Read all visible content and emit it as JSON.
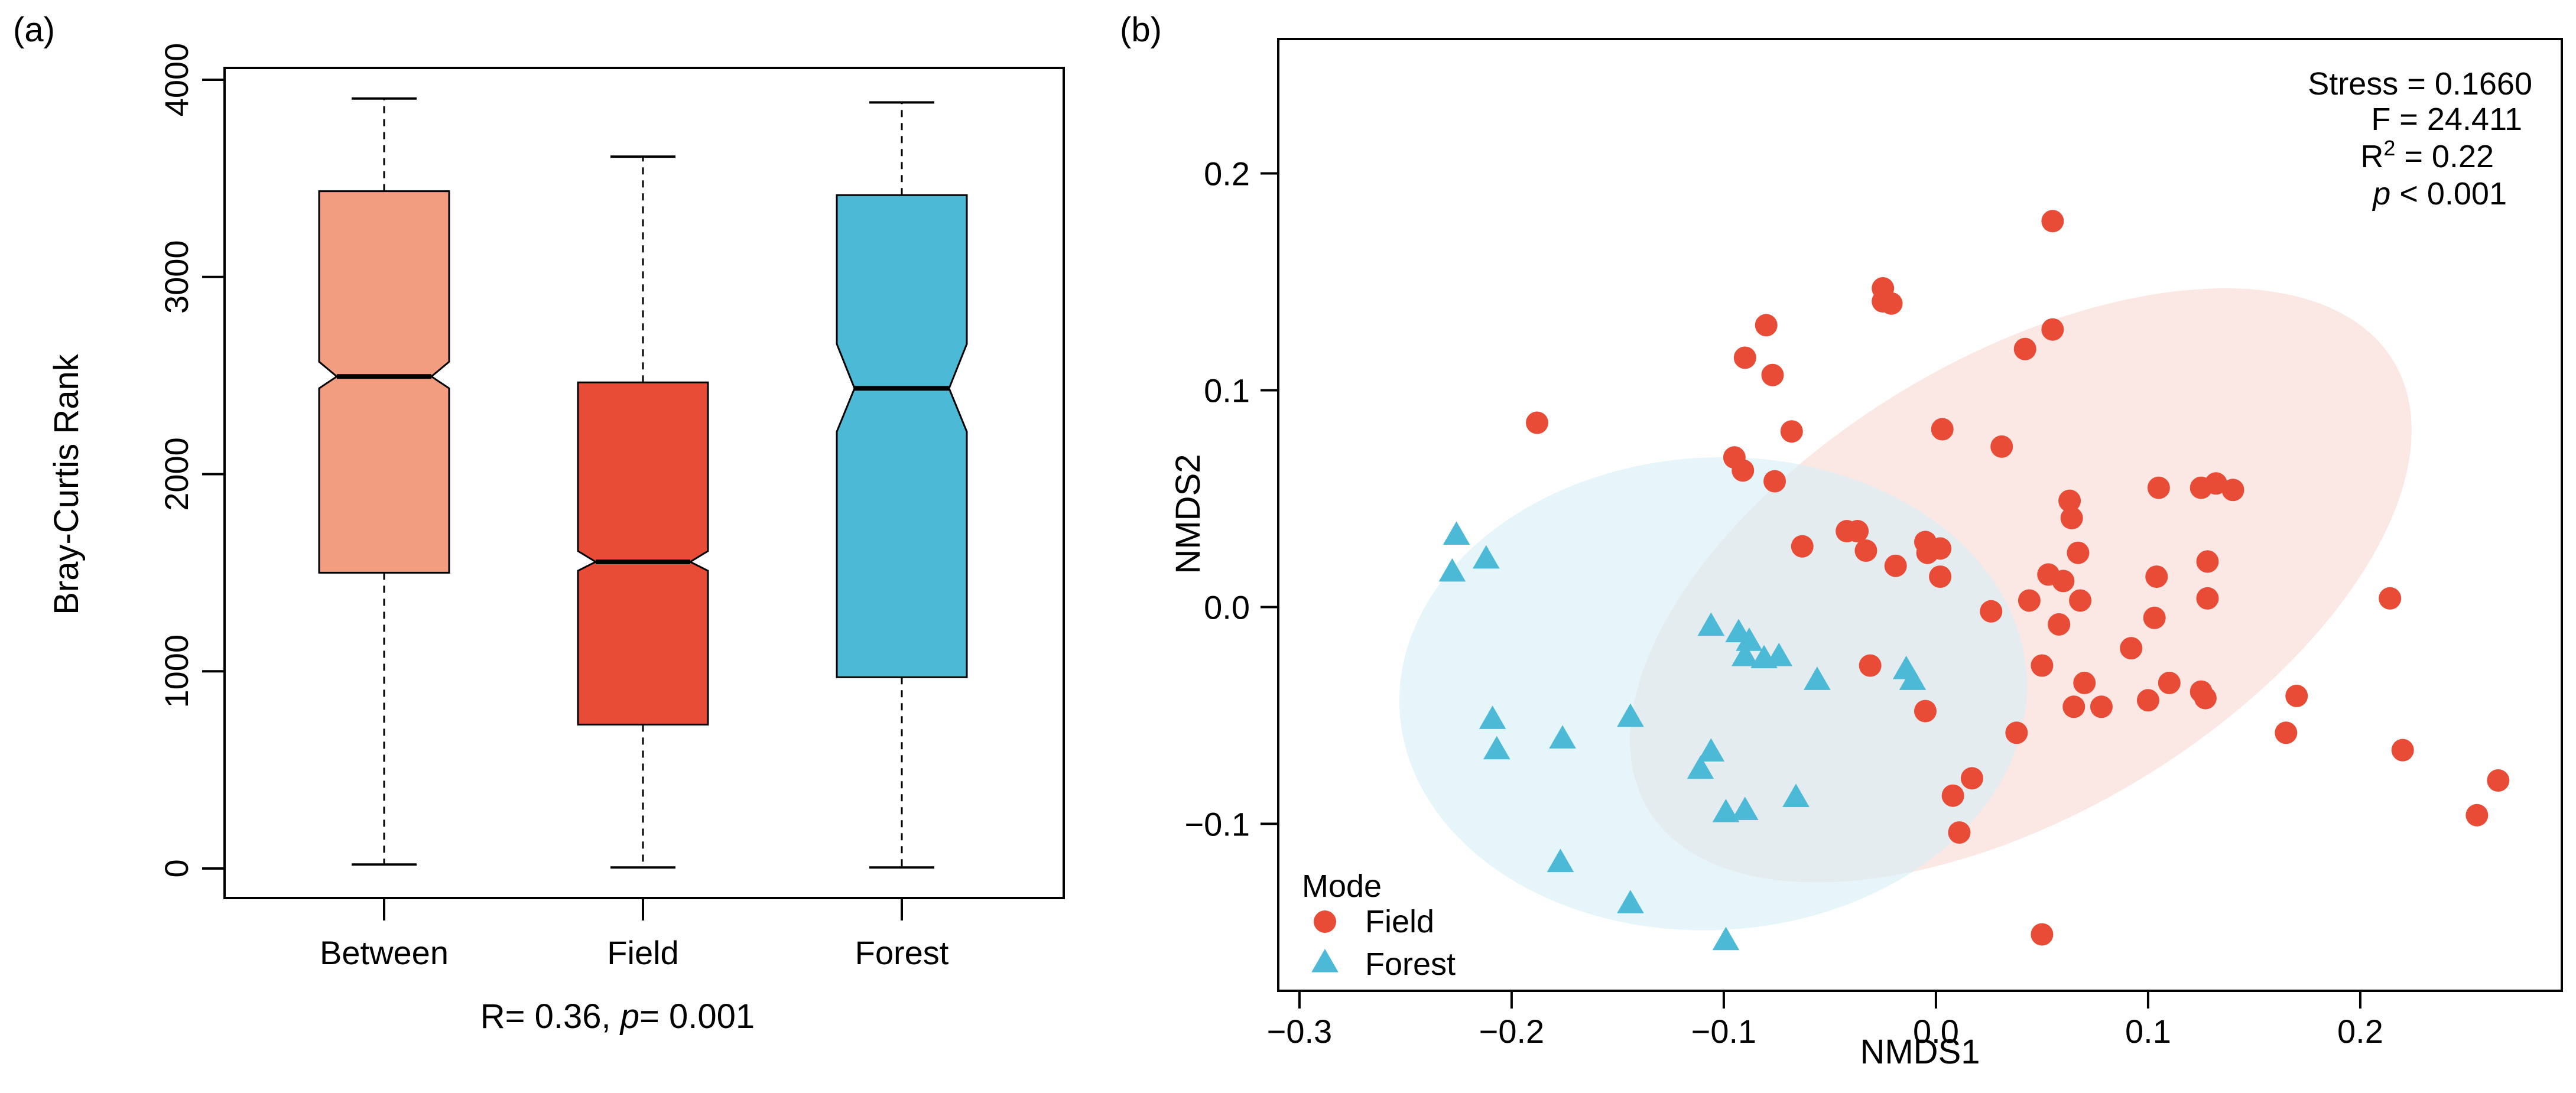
{
  "colors": {
    "between": "#F29C80",
    "field": "#E84C37",
    "forest": "#4CBAD6",
    "field_ellipse": "#F9D9D4",
    "forest_ellipse": "#D5EFF5",
    "median": "#000000"
  },
  "chart_data": [
    {
      "type": "box",
      "panel_label": "(a)",
      "xlabel": "",
      "ylabel": "Bray-Curtis Rank",
      "ylim": [
        -150,
        4060
      ],
      "yticks": [
        "0",
        "1000",
        "2000",
        "3000",
        "4000"
      ],
      "ytick_values": [
        0,
        1000,
        2000,
        3000,
        4000
      ],
      "categories": [
        "Between",
        "Field",
        "Forest"
      ],
      "boxes": [
        {
          "name": "Between",
          "min": 20,
          "q1": 1500,
          "median": 2495,
          "q3": 3435,
          "max": 3905,
          "notch_low": 2435,
          "notch_high": 2570
        },
        {
          "name": "Field",
          "min": 5,
          "q1": 730,
          "median": 1555,
          "q3": 2465,
          "max": 3610,
          "notch_low": 1510,
          "notch_high": 1610
        },
        {
          "name": "Forest",
          "min": 5,
          "q1": 970,
          "median": 2435,
          "q3": 3415,
          "max": 3885,
          "notch_low": 2215,
          "notch_high": 2660
        }
      ],
      "annotation": {
        "r_text": "R= 0.36, ",
        "p_symbol": "p",
        "p_text": "= 0.001"
      }
    },
    {
      "type": "scatter",
      "panel_label": "(b)",
      "xlabel": "NMDS1",
      "ylabel": "NMDS2",
      "xlim": [
        -0.31,
        0.295
      ],
      "ylim": [
        -0.177,
        0.262
      ],
      "xticks": [
        "−0.3",
        "−0.2",
        "−0.1",
        "0.0",
        "0.1",
        "0.2"
      ],
      "xtick_values": [
        -0.3,
        -0.2,
        -0.1,
        0.0,
        0.1,
        0.2
      ],
      "yticks": [
        "−0.1",
        "0.0",
        "0.1",
        "0.2"
      ],
      "ytick_values": [
        -0.1,
        0.0,
        0.1,
        0.2
      ],
      "stats": {
        "stress": "Stress = 0.1660",
        "f": "F = 24.411",
        "r2_prefix": "R",
        "r2_sup": "2",
        "r2_suffix": " = 0.22",
        "p_symbol": "p",
        "p_suffix": " < 0.001"
      },
      "legend": {
        "title": "Mode",
        "position": "bottom-left"
      },
      "series": [
        {
          "name": "Field",
          "marker": "circle",
          "ellipse": {
            "cx": 0.04,
            "cy": 0.01,
            "rx": 0.205,
            "ry": 0.105,
            "angle_deg": -31
          },
          "points": [
            [
              0.055,
              0.178
            ],
            [
              -0.025,
              0.147
            ],
            [
              -0.025,
              0.141
            ],
            [
              -0.021,
              0.14
            ],
            [
              -0.08,
              0.13
            ],
            [
              0.055,
              0.128
            ],
            [
              0.042,
              0.119
            ],
            [
              -0.09,
              0.115
            ],
            [
              -0.077,
              0.107
            ],
            [
              -0.188,
              0.085
            ],
            [
              0.003,
              0.082
            ],
            [
              -0.068,
              0.081
            ],
            [
              0.031,
              0.074
            ],
            [
              -0.095,
              0.069
            ],
            [
              -0.091,
              0.063
            ],
            [
              -0.076,
              0.058
            ],
            [
              0.105,
              0.055
            ],
            [
              0.125,
              0.055
            ],
            [
              0.132,
              0.057
            ],
            [
              0.14,
              0.054
            ],
            [
              0.063,
              0.049
            ],
            [
              0.064,
              0.041
            ],
            [
              -0.037,
              0.035
            ],
            [
              -0.042,
              0.035
            ],
            [
              -0.063,
              0.028
            ],
            [
              -0.005,
              0.03
            ],
            [
              0.002,
              0.027
            ],
            [
              -0.004,
              0.025
            ],
            [
              -0.033,
              0.026
            ],
            [
              0.067,
              0.025
            ],
            [
              -0.019,
              0.019
            ],
            [
              0.128,
              0.021
            ],
            [
              0.053,
              0.015
            ],
            [
              0.06,
              0.012
            ],
            [
              0.104,
              0.014
            ],
            [
              0.002,
              0.014
            ],
            [
              0.068,
              0.003
            ],
            [
              0.044,
              0.003
            ],
            [
              0.128,
              0.004
            ],
            [
              0.214,
              0.004
            ],
            [
              0.026,
              -0.002
            ],
            [
              0.103,
              -0.005
            ],
            [
              0.058,
              -0.008
            ],
            [
              0.092,
              -0.019
            ],
            [
              -0.031,
              -0.027
            ],
            [
              0.05,
              -0.027
            ],
            [
              0.07,
              -0.035
            ],
            [
              0.11,
              -0.035
            ],
            [
              0.17,
              -0.041
            ],
            [
              0.125,
              -0.039
            ],
            [
              0.127,
              -0.042
            ],
            [
              0.1,
              -0.043
            ],
            [
              0.065,
              -0.046
            ],
            [
              0.078,
              -0.046
            ],
            [
              -0.005,
              -0.048
            ],
            [
              0.038,
              -0.058
            ],
            [
              0.165,
              -0.058
            ],
            [
              0.22,
              -0.066
            ],
            [
              0.017,
              -0.079
            ],
            [
              0.265,
              -0.08
            ],
            [
              0.008,
              -0.087
            ],
            [
              0.255,
              -0.096
            ],
            [
              0.011,
              -0.104
            ],
            [
              0.05,
              -0.151
            ]
          ]
        },
        {
          "name": "Forest",
          "marker": "triangle",
          "ellipse": {
            "cx": -0.105,
            "cy": -0.04,
            "rx": 0.148,
            "ry": 0.109,
            "angle_deg": -3
          },
          "points": [
            [
              -0.226,
              0.033
            ],
            [
              -0.212,
              0.022
            ],
            [
              -0.228,
              0.016
            ],
            [
              -0.106,
              -0.009
            ],
            [
              -0.093,
              -0.012
            ],
            [
              -0.088,
              -0.016
            ],
            [
              -0.074,
              -0.023
            ],
            [
              -0.081,
              -0.024
            ],
            [
              -0.09,
              -0.023
            ],
            [
              -0.056,
              -0.034
            ],
            [
              -0.014,
              -0.029
            ],
            [
              -0.011,
              -0.034
            ],
            [
              -0.209,
              -0.052
            ],
            [
              -0.144,
              -0.051
            ],
            [
              -0.176,
              -0.061
            ],
            [
              -0.207,
              -0.066
            ],
            [
              -0.106,
              -0.067
            ],
            [
              -0.111,
              -0.075
            ],
            [
              -0.066,
              -0.088
            ],
            [
              -0.09,
              -0.094
            ],
            [
              -0.099,
              -0.095
            ],
            [
              -0.177,
              -0.118
            ],
            [
              -0.144,
              -0.137
            ],
            [
              -0.099,
              -0.154
            ]
          ]
        }
      ]
    }
  ]
}
